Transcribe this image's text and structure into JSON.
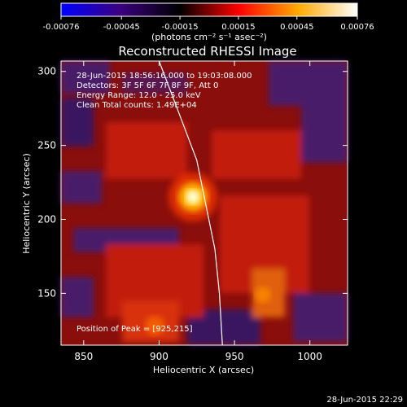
{
  "colorbar": {
    "ticks": [
      "-0.00076",
      "-0.00045",
      "-0.00015",
      "0.00015",
      "0.00045",
      "0.00076"
    ],
    "unit_label": "(photons cm⁻² s⁻¹ asec⁻²)",
    "range": [
      -0.00076,
      0.00076
    ],
    "stops": [
      "#0000ff",
      "#000000",
      "#ff0000",
      "#ff8800",
      "#ffff00",
      "#ffffff"
    ]
  },
  "chart_data": {
    "type": "heatmap",
    "title": "Reconstructed RHESSI Image",
    "xlabel": "Heliocentric X (arcsec)",
    "ylabel": "Heliocentric Y (arcsec)",
    "xlim": [
      835,
      1025
    ],
    "ylim": [
      115,
      307
    ],
    "x_ticks": [
      850,
      900,
      950,
      1000
    ],
    "y_ticks": [
      150,
      200,
      250,
      300
    ],
    "peak": [
      925,
      215
    ],
    "limb_curve": [
      [
        900,
        307
      ],
      [
        912,
        275
      ],
      [
        925,
        240
      ],
      [
        930,
        215
      ],
      [
        937,
        180
      ],
      [
        940,
        150
      ],
      [
        942,
        115
      ]
    ],
    "annotations": {
      "time": "28-Jun-2015 18:56:16.000 to 19:03:08.000",
      "detectors": "Detectors: 3F 5F 6F 7F 8F 9F, Att 0",
      "energy": "Energy Range: 12.0 - 25.0 keV",
      "clean": "Clean     Total counts: 1.49E+04",
      "peak_label": "Position of Peak = [925,215]"
    },
    "grid": false,
    "legend": "none"
  },
  "footer": {
    "timestamp": "28-Jun-2015 22:29"
  }
}
